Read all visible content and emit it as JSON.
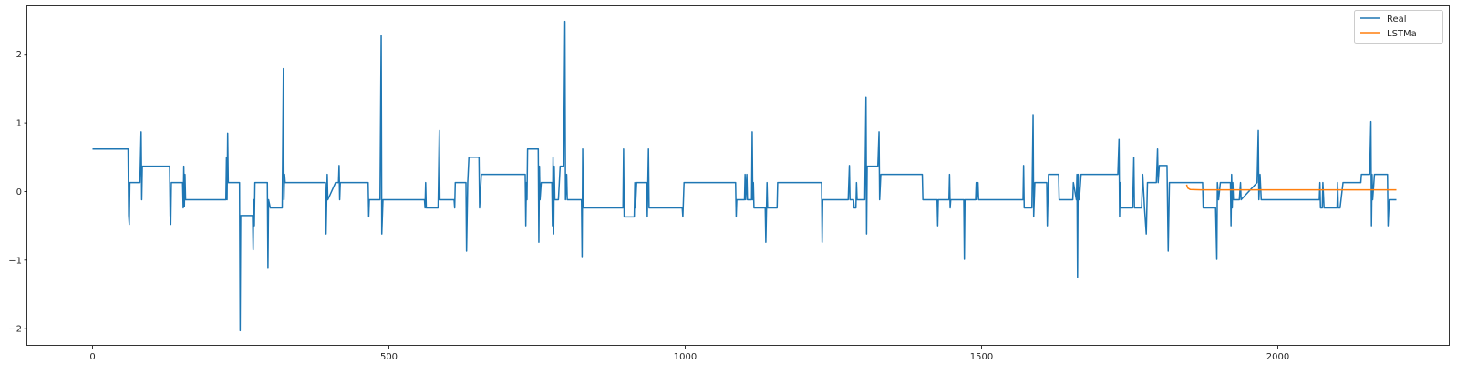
{
  "chart_data": {
    "type": "line",
    "title": "",
    "xlabel": "",
    "ylabel": "",
    "xlim": [
      -110,
      2290
    ],
    "ylim": [
      -2.25,
      2.7
    ],
    "xticks": [
      0,
      500,
      1000,
      1500,
      2000
    ],
    "xtick_labels": [
      "0",
      "500",
      "1000",
      "1500",
      "2000"
    ],
    "yticks": [
      -2,
      -1,
      0,
      1,
      2
    ],
    "ytick_labels": [
      "−2",
      "−1",
      "0",
      "1",
      "2"
    ],
    "grid": false,
    "legend_position": "top-right",
    "series": [
      {
        "name": "Real",
        "color": "#1f77b4",
        "points": [
          [
            0,
            0.62
          ],
          [
            60,
            0.62
          ],
          [
            61,
            -0.35
          ],
          [
            62,
            -0.48
          ],
          [
            63,
            0.13
          ],
          [
            80,
            0.13
          ],
          [
            82,
            0.87
          ],
          [
            83,
            -0.12
          ],
          [
            84,
            0.37
          ],
          [
            130,
            0.37
          ],
          [
            131,
            -0.35
          ],
          [
            132,
            -0.48
          ],
          [
            133,
            0.13
          ],
          [
            152,
            0.13
          ],
          [
            153,
            -0.24
          ],
          [
            154,
            0.37
          ],
          [
            155,
            -0.22
          ],
          [
            156,
            0.25
          ],
          [
            157,
            -0.12
          ],
          [
            225,
            -0.12
          ],
          [
            226,
            0.5
          ],
          [
            227,
            -0.12
          ],
          [
            228,
            0.85
          ],
          [
            229,
            0.13
          ],
          [
            248,
            0.13
          ],
          [
            249,
            -2.03
          ],
          [
            250,
            -0.35
          ],
          [
            270,
            -0.35
          ],
          [
            271,
            -0.85
          ],
          [
            272,
            -0.12
          ],
          [
            273,
            -0.5
          ],
          [
            274,
            0.13
          ],
          [
            295,
            0.13
          ],
          [
            296,
            -1.12
          ],
          [
            297,
            -0.12
          ],
          [
            300,
            -0.24
          ],
          [
            320,
            -0.24
          ],
          [
            322,
            1.79
          ],
          [
            323,
            -0.12
          ],
          [
            324,
            0.25
          ],
          [
            325,
            0.13
          ],
          [
            393,
            0.13
          ],
          [
            394,
            -0.62
          ],
          [
            396,
            0.25
          ],
          [
            397,
            -0.12
          ],
          [
            410,
            0.13
          ],
          [
            415,
            0.13
          ],
          [
            416,
            0.38
          ],
          [
            417,
            -0.12
          ],
          [
            418,
            0.13
          ],
          [
            465,
            0.13
          ],
          [
            466,
            -0.37
          ],
          [
            467,
            -0.12
          ],
          [
            485,
            -0.12
          ],
          [
            487,
            2.27
          ],
          [
            488,
            -0.62
          ],
          [
            490,
            -0.12
          ],
          [
            560,
            -0.12
          ],
          [
            561,
            -0.24
          ],
          [
            562,
            0.13
          ],
          [
            563,
            -0.24
          ],
          [
            583,
            -0.24
          ],
          [
            585,
            0.89
          ],
          [
            586,
            -0.12
          ],
          [
            610,
            -0.12
          ],
          [
            611,
            -0.24
          ],
          [
            612,
            0.13
          ],
          [
            630,
            0.13
          ],
          [
            631,
            -0.87
          ],
          [
            633,
            0.13
          ],
          [
            635,
            0.5
          ],
          [
            652,
            0.5
          ],
          [
            653,
            -0.24
          ],
          [
            656,
            0.25
          ],
          [
            730,
            0.25
          ],
          [
            731,
            -0.5
          ],
          [
            732,
            0.13
          ],
          [
            733,
            -0.12
          ],
          [
            734,
            0.62
          ],
          [
            752,
            0.62
          ],
          [
            753,
            -0.74
          ],
          [
            754,
            0.37
          ],
          [
            755,
            -0.12
          ],
          [
            757,
            0.13
          ],
          [
            775,
            0.13
          ],
          [
            776,
            -0.5
          ],
          [
            777,
            0.5
          ],
          [
            778,
            -0.62
          ],
          [
            779,
            0.37
          ],
          [
            780,
            -0.12
          ],
          [
            786,
            -0.12
          ],
          [
            789,
            0.37
          ],
          [
            795,
            0.37
          ],
          [
            797,
            2.48
          ],
          [
            798,
            -0.12
          ],
          [
            800,
            0.25
          ],
          [
            801,
            -0.12
          ],
          [
            825,
            -0.12
          ],
          [
            826,
            -0.95
          ],
          [
            827,
            0.62
          ],
          [
            828,
            -0.24
          ],
          [
            895,
            -0.24
          ],
          [
            896,
            0.62
          ],
          [
            897,
            -0.37
          ],
          [
            914,
            -0.37
          ],
          [
            915,
            0.13
          ],
          [
            916,
            -0.24
          ],
          [
            918,
            0.13
          ],
          [
            935,
            0.13
          ],
          [
            936,
            -0.37
          ],
          [
            938,
            0.62
          ],
          [
            939,
            -0.24
          ],
          [
            995,
            -0.24
          ],
          [
            996,
            -0.37
          ],
          [
            998,
            0.13
          ],
          [
            1050,
            0.13
          ],
          [
            1060,
            0.13
          ],
          [
            1085,
            0.13
          ],
          [
            1086,
            -0.37
          ],
          [
            1087,
            -0.12
          ],
          [
            1100,
            -0.12
          ],
          [
            1101,
            0.25
          ],
          [
            1102,
            -0.12
          ],
          [
            1104,
            0.25
          ],
          [
            1105,
            -0.12
          ],
          [
            1112,
            -0.12
          ],
          [
            1113,
            0.87
          ],
          [
            1114,
            -0.12
          ],
          [
            1115,
            0.13
          ],
          [
            1116,
            -0.24
          ],
          [
            1135,
            -0.24
          ],
          [
            1136,
            -0.74
          ],
          [
            1138,
            0.13
          ],
          [
            1139,
            -0.24
          ],
          [
            1155,
            -0.24
          ],
          [
            1156,
            0.13
          ],
          [
            1230,
            0.13
          ],
          [
            1231,
            -0.74
          ],
          [
            1232,
            -0.12
          ],
          [
            1275,
            -0.12
          ],
          [
            1277,
            0.38
          ],
          [
            1278,
            -0.12
          ],
          [
            1284,
            -0.12
          ],
          [
            1285,
            -0.24
          ],
          [
            1288,
            -0.24
          ],
          [
            1289,
            0.13
          ],
          [
            1290,
            -0.12
          ],
          [
            1303,
            -0.12
          ],
          [
            1305,
            1.37
          ],
          [
            1306,
            -0.62
          ],
          [
            1307,
            0.37
          ],
          [
            1325,
            0.37
          ],
          [
            1327,
            0.87
          ],
          [
            1328,
            -0.12
          ],
          [
            1330,
            0.25
          ],
          [
            1400,
            0.25
          ],
          [
            1401,
            -0.12
          ],
          [
            1425,
            -0.12
          ],
          [
            1426,
            -0.5
          ],
          [
            1427,
            -0.12
          ],
          [
            1445,
            -0.12
          ],
          [
            1446,
            0.25
          ],
          [
            1447,
            -0.24
          ],
          [
            1448,
            -0.12
          ],
          [
            1470,
            -0.12
          ],
          [
            1471,
            -0.99
          ],
          [
            1472,
            -0.12
          ],
          [
            1490,
            -0.12
          ],
          [
            1491,
            0.13
          ],
          [
            1492,
            -0.12
          ],
          [
            1494,
            0.13
          ],
          [
            1495,
            -0.12
          ],
          [
            1570,
            -0.12
          ],
          [
            1571,
            0.38
          ],
          [
            1572,
            -0.24
          ],
          [
            1585,
            -0.24
          ],
          [
            1587,
            1.12
          ],
          [
            1588,
            -0.37
          ],
          [
            1590,
            0.13
          ],
          [
            1610,
            0.13
          ],
          [
            1611,
            -0.5
          ],
          [
            1613,
            0.25
          ],
          [
            1630,
            0.25
          ],
          [
            1631,
            -0.12
          ],
          [
            1650,
            -0.12
          ],
          [
            1654,
            -0.12
          ],
          [
            1655,
            0.13
          ],
          [
            1660,
            -0.12
          ],
          [
            1661,
            0.25
          ],
          [
            1662,
            -1.25
          ],
          [
            1663,
            0.25
          ],
          [
            1665,
            -0.12
          ],
          [
            1668,
            0.25
          ],
          [
            1730,
            0.25
          ],
          [
            1732,
            0.76
          ],
          [
            1733,
            -0.37
          ],
          [
            1734,
            0.13
          ],
          [
            1735,
            -0.24
          ],
          [
            1755,
            -0.24
          ],
          [
            1757,
            0.5
          ],
          [
            1758,
            -0.24
          ],
          [
            1770,
            -0.24
          ],
          [
            1772,
            0.25
          ],
          [
            1775,
            -0.24
          ],
          [
            1778,
            -0.62
          ],
          [
            1780,
            0.13
          ],
          [
            1795,
            0.13
          ],
          [
            1797,
            0.62
          ],
          [
            1798,
            0.13
          ],
          [
            1800,
            0.38
          ],
          [
            1813,
            0.38
          ],
          [
            1815,
            -0.87
          ],
          [
            1817,
            0.13
          ],
          [
            1870,
            0.13
          ],
          [
            1873,
            0.13
          ],
          [
            1874,
            -0.24
          ],
          [
            1895,
            -0.24
          ],
          [
            1897,
            -0.99
          ],
          [
            1898,
            0.13
          ],
          [
            1900,
            -0.12
          ],
          [
            1903,
            0.13
          ],
          [
            1920,
            0.13
          ],
          [
            1921,
            -0.5
          ],
          [
            1922,
            0.25
          ],
          [
            1923,
            -0.24
          ],
          [
            1924,
            0.13
          ],
          [
            1925,
            -0.12
          ],
          [
            1935,
            -0.12
          ],
          [
            1937,
            0.13
          ],
          [
            1938,
            -0.12
          ],
          [
            1965,
            0.13
          ],
          [
            1967,
            0.89
          ],
          [
            1968,
            -0.12
          ],
          [
            1970,
            0.25
          ],
          [
            1972,
            -0.12
          ],
          [
            2070,
            -0.12
          ],
          [
            2071,
            0.13
          ],
          [
            2072,
            -0.24
          ],
          [
            2075,
            -0.24
          ],
          [
            2076,
            0.13
          ],
          [
            2078,
            -0.24
          ],
          [
            2100,
            -0.24
          ],
          [
            2101,
            0.13
          ],
          [
            2102,
            -0.24
          ],
          [
            2105,
            -0.24
          ],
          [
            2110,
            0.13
          ],
          [
            2140,
            0.13
          ],
          [
            2141,
            0.25
          ],
          [
            2155,
            0.25
          ],
          [
            2157,
            1.02
          ],
          [
            2158,
            -0.5
          ],
          [
            2159,
            0.25
          ],
          [
            2160,
            -0.12
          ],
          [
            2163,
            0.25
          ],
          [
            2185,
            0.25
          ],
          [
            2186,
            -0.5
          ],
          [
            2188,
            -0.12
          ],
          [
            2200,
            -0.12
          ]
        ]
      },
      {
        "name": "LSTMa",
        "color": "#ff7f0e",
        "points": [
          [
            1846,
            0.1
          ],
          [
            1848,
            0.05
          ],
          [
            1852,
            0.03
          ],
          [
            1870,
            0.025
          ],
          [
            2000,
            0.025
          ],
          [
            2200,
            0.025
          ]
        ]
      }
    ]
  }
}
